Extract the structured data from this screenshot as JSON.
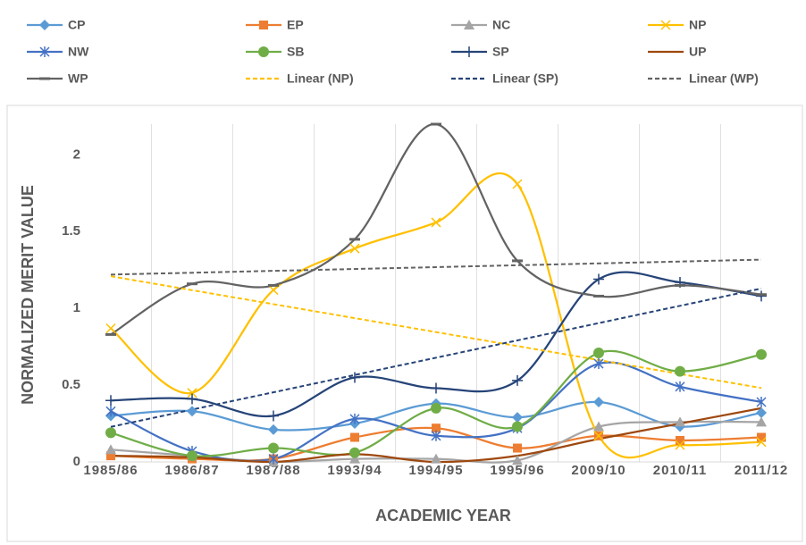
{
  "chart_data": {
    "type": "line",
    "x_label": "ACADEMIC YEAR",
    "y_label": "NORMALIZED MERIT VALUE",
    "categories": [
      "1985/86",
      "1986/87",
      "1987/88",
      "1993/94",
      "1994/95",
      "1995/96",
      "2009/10",
      "2010/11",
      "2011/12"
    ],
    "ylim": [
      0,
      2.2
    ],
    "yticks": [
      0,
      0.5,
      1,
      1.5,
      2
    ],
    "grid": "x",
    "legend": "top",
    "smooth": true,
    "series": [
      {
        "name": "CP",
        "color": "#5b9bd5",
        "marker": "diamond",
        "values": [
          0.3,
          0.33,
          0.21,
          0.25,
          0.38,
          0.29,
          0.39,
          0.23,
          0.32
        ]
      },
      {
        "name": "EP",
        "color": "#ed7d31",
        "marker": "square",
        "values": [
          0.04,
          0.02,
          0.02,
          0.16,
          0.22,
          0.09,
          0.17,
          0.14,
          0.16
        ]
      },
      {
        "name": "NC",
        "color": "#a5a5a5",
        "marker": "triangle",
        "values": [
          0.08,
          0.04,
          0.0,
          0.02,
          0.02,
          0.01,
          0.23,
          0.26,
          0.26
        ]
      },
      {
        "name": "NP",
        "color": "#ffc000",
        "marker": "x",
        "values": [
          0.87,
          0.45,
          1.12,
          1.39,
          1.56,
          1.81,
          0.17,
          0.11,
          0.13
        ],
        "trendline": {
          "name": "Linear (NP)",
          "color": "#ffc000"
        }
      },
      {
        "name": "NW",
        "color": "#4472c4",
        "marker": "star",
        "values": [
          0.33,
          0.07,
          0.02,
          0.28,
          0.17,
          0.22,
          0.64,
          0.49,
          0.39
        ]
      },
      {
        "name": "SB",
        "color": "#70ad47",
        "marker": "circle",
        "values": [
          0.19,
          0.04,
          0.09,
          0.06,
          0.35,
          0.23,
          0.71,
          0.59,
          0.7
        ]
      },
      {
        "name": "SP",
        "color": "#264478",
        "marker": "plus",
        "values": [
          0.4,
          0.41,
          0.3,
          0.55,
          0.48,
          0.53,
          1.19,
          1.17,
          1.08
        ],
        "trendline": {
          "name": "Linear (SP)",
          "color": "#264478"
        }
      },
      {
        "name": "UP",
        "color": "#9e480e",
        "marker": "none",
        "values": [
          0.04,
          0.03,
          0.0,
          0.05,
          0.0,
          0.04,
          0.15,
          0.25,
          0.35
        ]
      },
      {
        "name": "WP",
        "color": "#636363",
        "marker": "dash",
        "values": [
          0.83,
          1.16,
          1.15,
          1.45,
          2.2,
          1.31,
          1.08,
          1.15,
          1.09
        ],
        "trendline": {
          "name": "Linear (WP)",
          "color": "#636363"
        }
      }
    ]
  }
}
